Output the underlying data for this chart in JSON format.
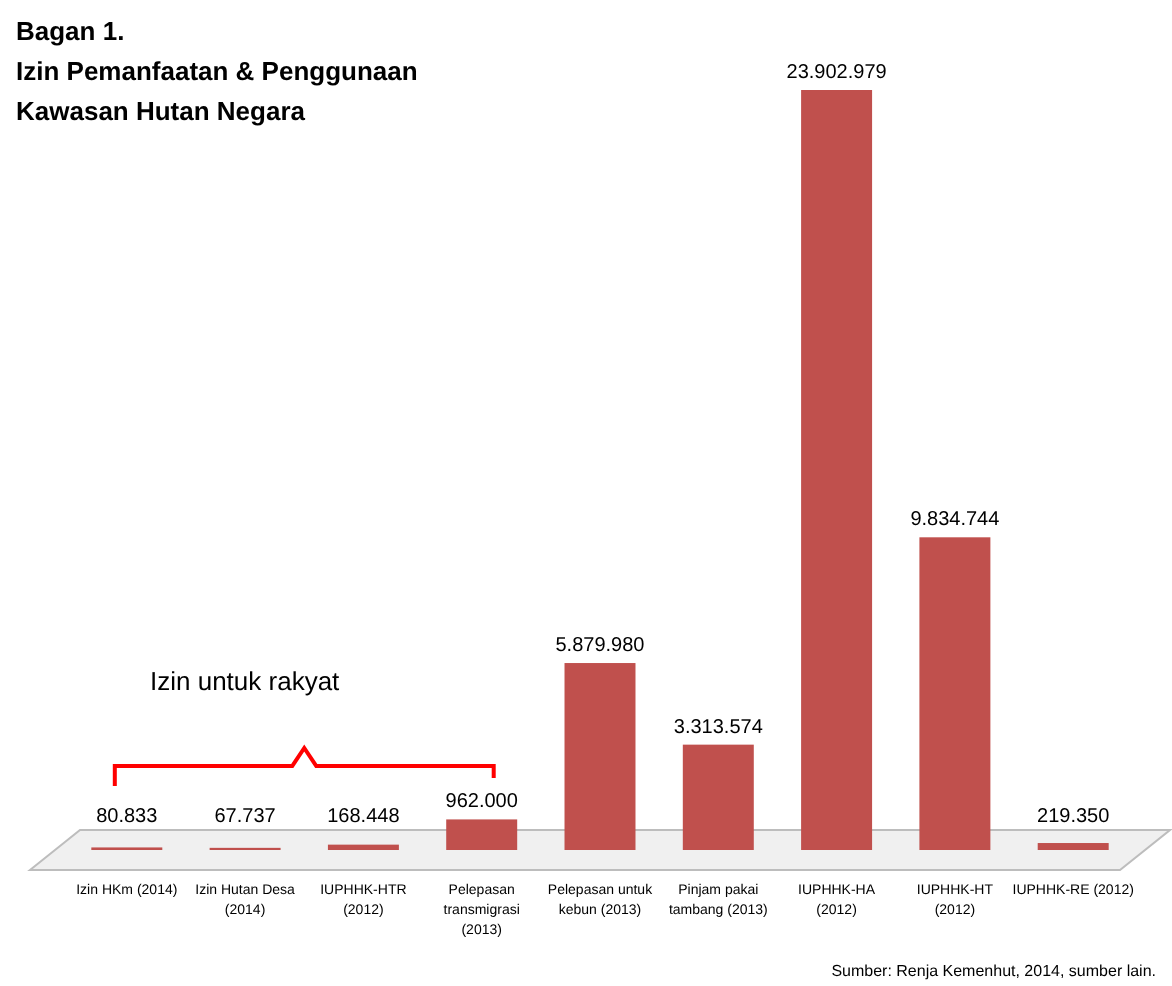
{
  "chart_data": {
    "type": "bar",
    "title": "Bagan 1.\nIzin Pemanfaatan & Penggunaan\nKawasan Hutan Negara",
    "categories": [
      "Izin HKm (2014)",
      "Izin Hutan Desa\n(2014)",
      "IUPHHK-HTR\n(2012)",
      "Pelepasan\ntransmigrasi\n(2013)",
      "Pelepasan untuk\nkebun (2013)",
      "Pinjam pakai\ntambang (2013)",
      "IUPHHK-HA\n(2012)",
      "IUPHHK-HT\n(2012)",
      "IUPHHK-RE (2012)"
    ],
    "values": [
      80833,
      67737,
      168448,
      962000,
      5879980,
      3313574,
      23902979,
      9834744,
      219350
    ],
    "value_labels": [
      "80.833",
      "67.737",
      "168.448",
      "962.000",
      "5.879.980",
      "3.313.574",
      "23.902.979",
      "9.834.744",
      "219.350"
    ],
    "color": "#c0504d",
    "annotations": [
      "Izin untuk rakyat",
      "Sumber: Renja Kemenhut, 2014, sumber lain."
    ]
  }
}
